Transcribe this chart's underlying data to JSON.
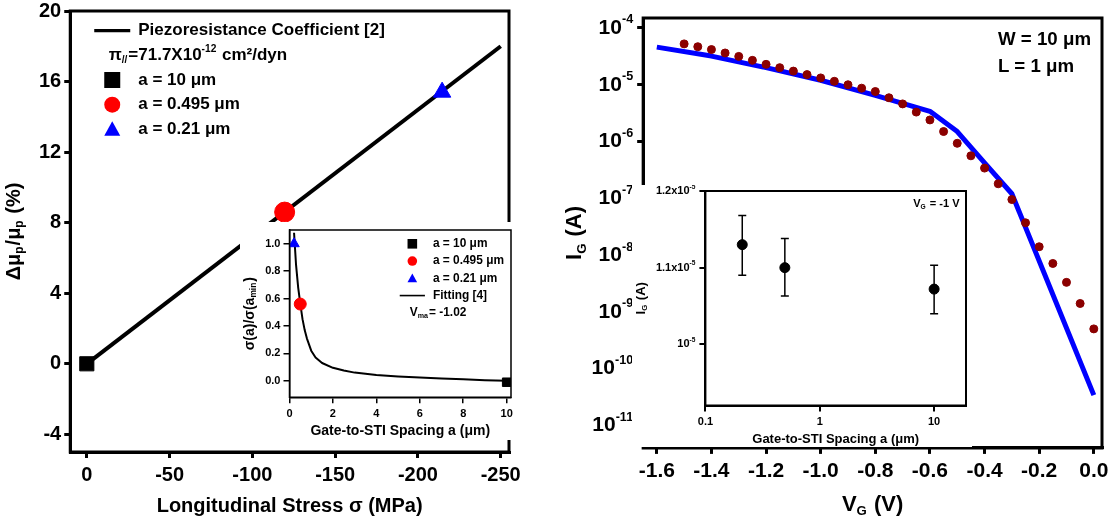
{
  "chart_data": [
    {
      "type": "scatter",
      "xlabel": "Longitudinal Stress σ (MPa)",
      "ylabel": "Δμ$_{p}$/μ$_{p}$ (%)",
      "xlim": [
        10,
        -255
      ],
      "xticks": [
        0,
        -50,
        -100,
        -150,
        -200,
        -250
      ],
      "ylim": [
        -5,
        20
      ],
      "yticks": [
        -4,
        0,
        4,
        8,
        12,
        16,
        20
      ],
      "legend": "top left",
      "annotations": [
        "π$_{//}$=71.7X10$^{-12}$ cm²/dyn"
      ],
      "series": [
        {
          "type": "line",
          "name": "Piezoresistance Coefficient [2]",
          "color": "#000000",
          "marker": "none",
          "x": [
            0,
            -250
          ],
          "values": [
            0,
            18
          ]
        },
        {
          "name": "a = 10 μm",
          "color": "#000000",
          "marker": "square",
          "x": [
            0
          ],
          "values": [
            0
          ]
        },
        {
          "name": "a = 0.495 μm",
          "color": "#ff0000",
          "marker": "circle",
          "x": [
            -119.5
          ],
          "values": [
            8.6
          ]
        },
        {
          "name": "a = 0.21 μm",
          "color": "#0000ff",
          "marker": "triangle",
          "x": [
            -214.6
          ],
          "values": [
            15.4
          ]
        }
      ]
    },
    {
      "type": "scatter",
      "xlabel": "Gate-to-STI Spacing a (μm)",
      "ylabel": "σ(a)/σ(a$_{min}$)",
      "xlim": [
        0,
        10.2
      ],
      "xticks": [
        0,
        2,
        4,
        6,
        8,
        10
      ],
      "ylim": [
        -0.12,
        1.1
      ],
      "yticks": [
        {
          "value": 0,
          "label": "0.0"
        },
        0.2,
        0.4,
        0.6,
        0.8,
        {
          "value": 1,
          "label": "1.0"
        }
      ],
      "legend": "top right",
      "annotations": [
        "V$_{ma}$= -1.02"
      ],
      "series": [
        {
          "name": "a = 10 μm",
          "color": "#000000",
          "marker": "square",
          "x": [
            10
          ],
          "values": [
            -0.01
          ]
        },
        {
          "name": "a = 0.495 μm",
          "color": "#ff0000",
          "marker": "circle",
          "x": [
            0.495
          ],
          "values": [
            0.56
          ]
        },
        {
          "name": "a = 0.21 μm",
          "color": "#0000ff",
          "marker": "triangle",
          "x": [
            0.21
          ],
          "values": [
            1.0
          ]
        },
        {
          "type": "line",
          "name": "Fitting [4]",
          "color": "#000000",
          "marker": "none",
          "x": [
            0.21,
            0.3,
            0.4,
            0.5,
            0.6,
            0.7,
            0.8,
            1,
            1.2,
            1.5,
            2,
            2.5,
            3,
            4,
            5,
            6,
            7,
            8,
            9,
            10
          ],
          "values": [
            1.08,
            0.85,
            0.68,
            0.56,
            0.45,
            0.37,
            0.31,
            0.22,
            0.17,
            0.13,
            0.095,
            0.075,
            0.06,
            0.042,
            0.032,
            0.024,
            0.017,
            0.011,
            0.005,
            0.0
          ]
        }
      ]
    },
    {
      "type": "scatter",
      "xlabel": "V$_{G}$ (V)",
      "ylabel": "I$_{G}$ (A)",
      "log": "y",
      "xlim": [
        -1.65,
        0.03
      ],
      "xticks": [
        {
          "value": -1.6,
          "label": "-1.6"
        },
        {
          "value": -1.4,
          "label": "-1.4"
        },
        {
          "value": -1.2,
          "label": "-1.2"
        },
        {
          "value": -1,
          "label": "-1.0"
        },
        {
          "value": -0.8,
          "label": "-0.8"
        },
        {
          "value": -0.6,
          "label": "-0.6"
        },
        {
          "value": -0.4,
          "label": "-0.4"
        },
        {
          "value": -0.2,
          "label": "-0.2"
        },
        {
          "value": 0,
          "label": "0.0"
        }
      ],
      "ylim": [
        4e-12,
        0.00015
      ],
      "yticks": [
        {
          "value": 0.0001,
          "label": "10$^{-4}$"
        },
        {
          "value": 1e-05,
          "label": "10$^{-5}$"
        },
        {
          "value": 1e-06,
          "label": "10$^{-6}$"
        },
        {
          "value": 1e-07,
          "label": "10$^{-7}$"
        },
        {
          "value": 1e-08,
          "label": "10$^{-8}$"
        },
        {
          "value": 1e-09,
          "label": "10$^{-9}$"
        },
        {
          "value": 1e-10,
          "label": "10$^{-10}$"
        },
        {
          "value": 1e-11,
          "label": "10$^{-11}$"
        }
      ],
      "annotations": [
        "W = 10 μm",
        "L = 1 μm"
      ],
      "series": [
        {
          "color": "#8b0000",
          "marker": "circle",
          "x": [
            -1.5,
            -1.45,
            -1.4,
            -1.35,
            -1.3,
            -1.25,
            -1.2,
            -1.15,
            -1.1,
            -1.05,
            -1,
            -0.95,
            -0.9,
            -0.85,
            -0.8,
            -0.75,
            -0.7,
            -0.65,
            -0.6,
            -0.55,
            -0.5,
            -0.45,
            -0.4,
            -0.35,
            -0.3,
            -0.25,
            -0.2,
            -0.15,
            -0.1,
            -0.05,
            0
          ],
          "values": [
            5.25e-05,
            4.68e-05,
            4.17e-05,
            3.63e-05,
            3.16e-05,
            2.69e-05,
            2.29e-05,
            2e-05,
            1.74e-05,
            1.51e-05,
            1.32e-05,
            1.15e-05,
            1e-05,
            8.7e-06,
            7.6e-06,
            5.9e-06,
            4.6e-06,
            3.3e-06,
            2.4e-06,
            1.5e-06,
            9.3e-07,
            5.6e-07,
            3.4e-07,
            1.8e-07,
            9.5e-08,
            3.7e-08,
            1.4e-08,
            7.1e-09,
            3.3e-09,
            1.4e-09,
            5e-10
          ]
        },
        {
          "type": "line",
          "color": "#0000ff",
          "marker": "none",
          "x": [
            -1.6,
            -1.4,
            -1.2,
            -1.0,
            -0.8,
            -0.6,
            -0.5,
            -0.4,
            -0.3,
            0
          ],
          "values": [
            4.6e-05,
            3.2e-05,
            2e-05,
            1.2e-05,
            6.5e-06,
            3.4e-06,
            1.5e-06,
            4.2e-07,
            1.2e-07,
            3.4e-11
          ]
        }
      ]
    },
    {
      "type": "scatter",
      "xlabel": "Gate-to-STI Spacing a (μm)",
      "ylabel": "I$_{G}$ (A)",
      "log": "x",
      "xlim": [
        0.1,
        19
      ],
      "xticks": [
        0.1,
        1,
        10
      ],
      "ylim": [
        9.2e-06,
        1.2e-05
      ],
      "yticks": [
        {
          "value": 1e-05,
          "label": "10$^{-5}$"
        },
        {
          "value": 1.1e-05,
          "label": "1.1x10$^{-5}$"
        },
        {
          "value": 1.2e-05,
          "label": "1.2x10$^{-5}$"
        }
      ],
      "annotations": [
        "V$_{G}$ = -1 V"
      ],
      "series": [
        {
          "color": "#000000",
          "marker": "circle",
          "x": [
            0.21,
            0.495,
            10
          ],
          "values": [
            1.13e-05,
            1.1e-05,
            1.072e-05
          ],
          "errors": [
            [
              1.09e-05,
              1.168e-05
            ],
            [
              1.063e-05,
              1.138e-05
            ],
            [
              1.04e-05,
              1.103e-05
            ]
          ]
        }
      ]
    }
  ]
}
